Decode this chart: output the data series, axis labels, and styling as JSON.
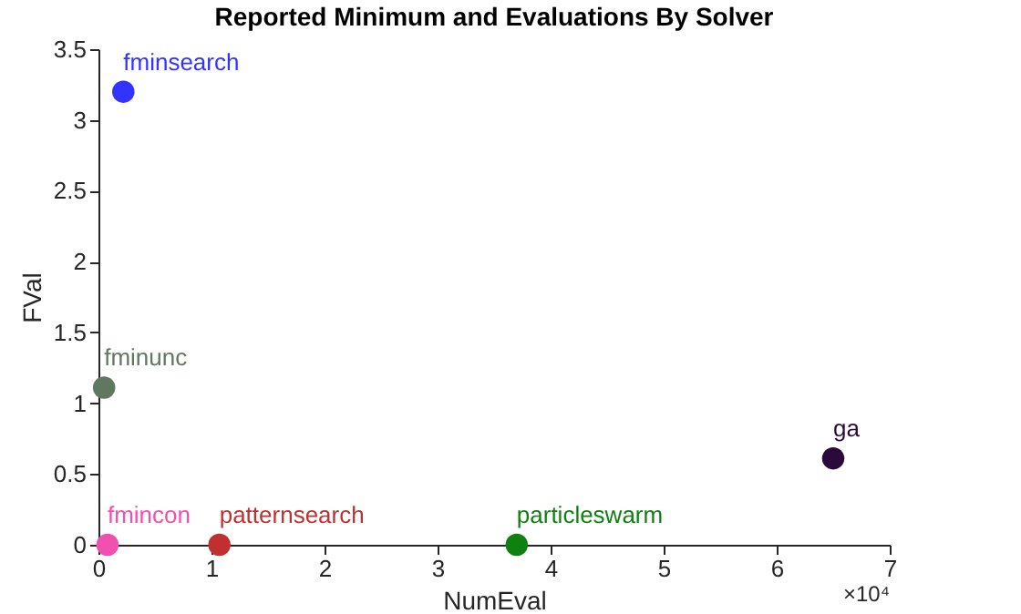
{
  "chart_data": {
    "type": "scatter",
    "title": "Reported Minimum and Evaluations By Solver",
    "xlabel": "NumEval",
    "ylabel": "FVal",
    "series": [
      {
        "name": "fminsearch",
        "color": "#3333ff",
        "x": [
          0.22
        ],
        "values": [
          3.2
        ]
      },
      {
        "name": "fminunc",
        "color": "#607860",
        "x": [
          0.05
        ],
        "values": [
          1.11
        ]
      },
      {
        "name": "fmincon",
        "color": "#f050b0",
        "x": [
          0.08
        ],
        "values": [
          0
        ]
      },
      {
        "name": "patternsearch",
        "color": "#c03030",
        "x": [
          1.07
        ],
        "values": [
          0
        ]
      },
      {
        "name": "particleswarm",
        "color": "#108010",
        "x": [
          3.7
        ],
        "values": [
          0
        ]
      },
      {
        "name": "ga",
        "color": "#2a0a3a",
        "x": [
          6.5
        ],
        "values": [
          0.61
        ]
      }
    ],
    "xlim": [
      0,
      7
    ],
    "xticks": [
      0,
      1,
      2,
      3,
      4,
      5,
      6,
      7
    ],
    "ylim": [
      0,
      3.5
    ],
    "yticks": [
      0,
      0.5,
      1,
      1.5,
      2,
      2.5,
      3,
      3.5
    ],
    "annotations": [
      "×10⁴"
    ],
    "marker": "circle",
    "grid": false,
    "legend": false
  }
}
